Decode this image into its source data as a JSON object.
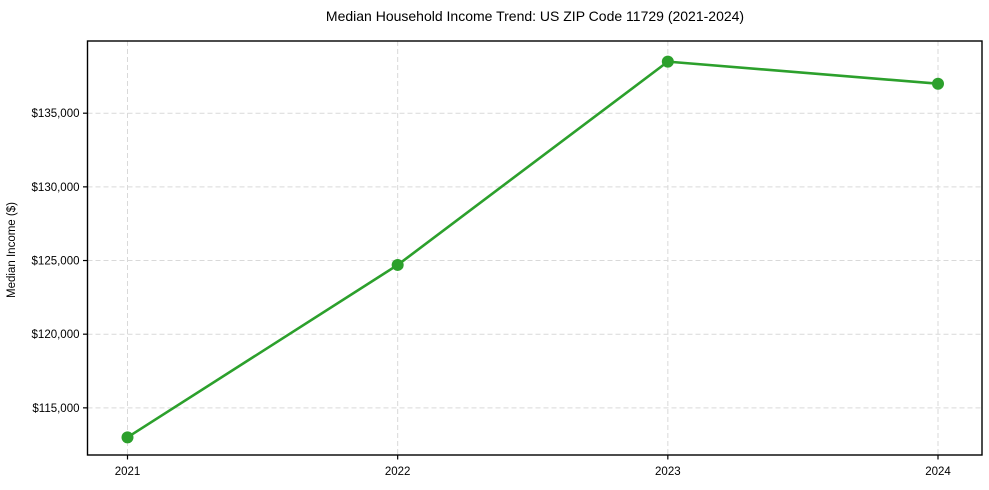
{
  "figure": {
    "background": "#ffffff"
  },
  "chart_data": {
    "type": "line",
    "title": "Median Household Income Trend: US ZIP Code 11729 (2021-2024)",
    "xlabel": "",
    "ylabel": "Median Income ($)",
    "categories": [
      "2021",
      "2022",
      "2023",
      "2024"
    ],
    "series": [
      {
        "name": "median-household-income",
        "values": [
          113000,
          124700,
          138500,
          137000
        ],
        "color": "#2ca02c",
        "marker": "circle"
      }
    ],
    "ylim": [
      111800,
      139900
    ],
    "yticks": [
      115000,
      120000,
      125000,
      130000,
      135000
    ],
    "ytick_labels": [
      "$115,000",
      "$120,000",
      "$125,000",
      "$130,000",
      "$135,000"
    ],
    "xtick_labels": [
      "2021",
      "2022",
      "2023",
      "2024"
    ],
    "grid": {
      "visible": true,
      "style": "dashed",
      "axes": "both",
      "color": "#d9d9d9"
    },
    "axis_color": "#000000",
    "text_color": "#000000",
    "legend_position": "none"
  }
}
